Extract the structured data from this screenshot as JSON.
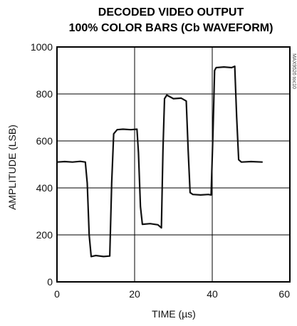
{
  "chart_data": {
    "type": "line",
    "title_line1": "DECODED VIDEO OUTPUT",
    "title_line2": "100% COLOR BARS (Cb WAVEFORM)",
    "xlabel": "TIME (µs)",
    "ylabel": "AMPLITUDE (LSB)",
    "side_note": "MAX9526 toc10",
    "xlim": [
      0,
      60
    ],
    "ylim": [
      0,
      1000
    ],
    "xticks": [
      0,
      20,
      40,
      60
    ],
    "yticks": [
      0,
      200,
      400,
      600,
      800,
      1000
    ],
    "grid": true,
    "series": [
      {
        "x": [
          0,
          2,
          4,
          6,
          7.3,
          7.8,
          8.3,
          8.8,
          10,
          12,
          13.6,
          14.1,
          14.6,
          15.5,
          17,
          19,
          20.6,
          21.0,
          21.5,
          22,
          24,
          26,
          26.9,
          27.3,
          27.7,
          28.3,
          30,
          32,
          33.3,
          33.8,
          34.3,
          35,
          37,
          39,
          39.7,
          40.2,
          40.6,
          41,
          43,
          45,
          45.8,
          46.3,
          46.8,
          47.5,
          50,
          53
        ],
        "y": [
          510,
          512,
          510,
          513,
          510,
          420,
          200,
          108,
          112,
          108,
          110,
          420,
          630,
          648,
          650,
          648,
          650,
          550,
          320,
          245,
          248,
          243,
          230,
          560,
          780,
          795,
          780,
          782,
          770,
          560,
          380,
          372,
          370,
          372,
          370,
          640,
          900,
          912,
          915,
          912,
          918,
          700,
          520,
          510,
          512,
          510
        ]
      }
    ]
  }
}
